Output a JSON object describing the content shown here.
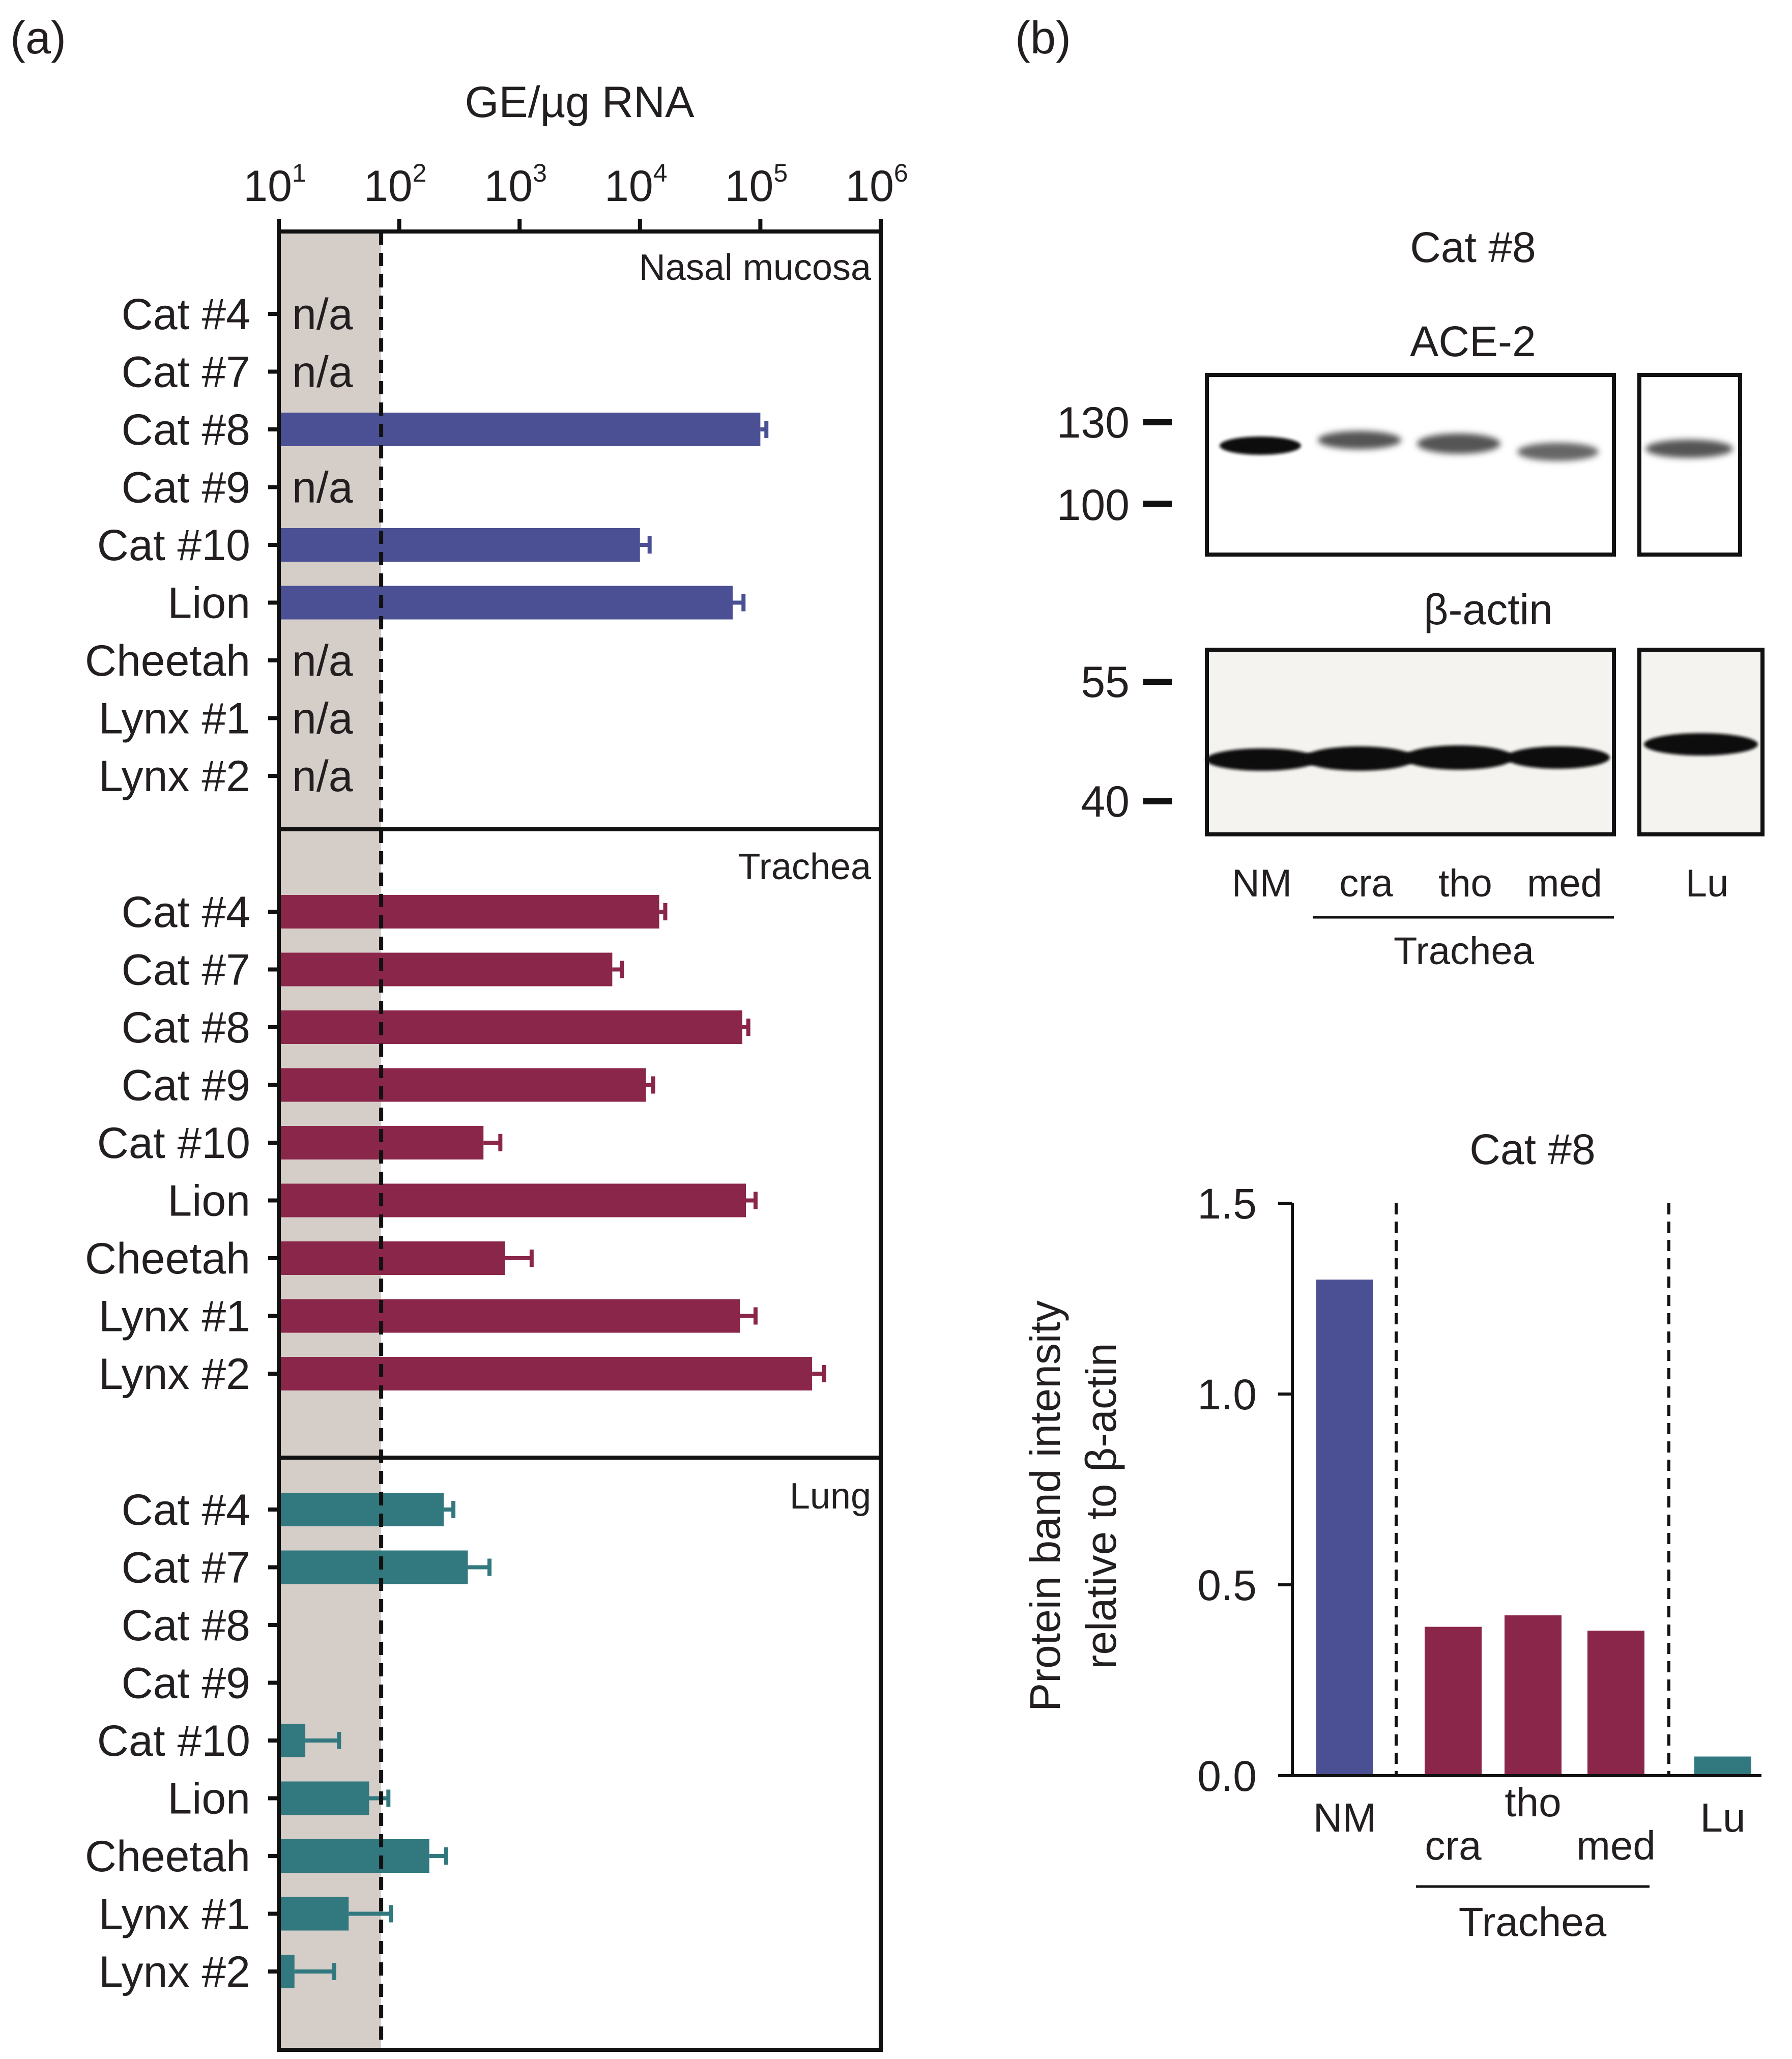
{
  "panel_labels": {
    "a": "(a)",
    "b": "(b)"
  },
  "colors": {
    "nasal": "#4b5094",
    "trachea": "#8a2649",
    "lung": "#32797f",
    "lod_shade": "#d5cdc8"
  },
  "chart_data": [
    {
      "type": "bar",
      "orientation": "horizontal",
      "scale": "log",
      "xlabel": "GE/µg RNA",
      "xticks": [
        {
          "base": "10",
          "exp": "1"
        },
        {
          "base": "10",
          "exp": "2"
        },
        {
          "base": "10",
          "exp": "3"
        },
        {
          "base": "10",
          "exp": "4"
        },
        {
          "base": "10",
          "exp": "5"
        },
        {
          "base": "10",
          "exp": "6"
        }
      ],
      "xlim_log10": [
        1,
        6
      ],
      "detection_limit_log10": 1.85,
      "panels": [
        {
          "name": "Nasal mucosa",
          "categories": [
            "Cat #4",
            "Cat #7",
            "Cat #8",
            "Cat #9",
            "Cat #10",
            "Lion",
            "Cheetah",
            "Lynx #1",
            "Lynx #2"
          ],
          "log10_values": [
            null,
            null,
            5.0,
            null,
            4.0,
            4.77,
            null,
            null,
            null
          ],
          "log10_error": [
            null,
            null,
            0.05,
            null,
            0.08,
            0.09,
            null,
            null,
            null
          ],
          "na_label": "n/a",
          "na": [
            true,
            true,
            false,
            true,
            false,
            false,
            true,
            true,
            true
          ]
        },
        {
          "name": "Trachea",
          "categories": [
            "Cat #4",
            "Cat #7",
            "Cat #8",
            "Cat #9",
            "Cat #10",
            "Lion",
            "Cheetah",
            "Lynx #1",
            "Lynx #2"
          ],
          "log10_values": [
            4.16,
            3.77,
            4.85,
            4.05,
            2.7,
            4.88,
            2.88,
            4.83,
            5.43
          ],
          "log10_error": [
            0.05,
            0.08,
            0.05,
            0.06,
            0.14,
            0.08,
            0.22,
            0.13,
            0.1
          ],
          "na": [
            false,
            false,
            false,
            false,
            false,
            false,
            false,
            false,
            false
          ]
        },
        {
          "name": "Lung",
          "categories": [
            "Cat #4",
            "Cat #7",
            "Cat #8",
            "Cat #9",
            "Cat #10",
            "Lion",
            "Cheetah",
            "Lynx #1",
            "Lynx #2"
          ],
          "log10_values": [
            2.37,
            2.57,
            null,
            null,
            1.22,
            1.75,
            2.25,
            1.58,
            1.13
          ],
          "log10_error": [
            0.08,
            0.18,
            null,
            null,
            0.28,
            0.16,
            0.14,
            0.35,
            0.33
          ],
          "na": [
            false,
            false,
            false,
            false,
            false,
            false,
            false,
            false,
            false
          ]
        }
      ]
    },
    {
      "type": "bar",
      "title": "Cat #8",
      "categories": [
        "NM",
        "cra",
        "tho",
        "med",
        "Lu"
      ],
      "values": [
        1.3,
        0.39,
        0.42,
        0.38,
        0.05
      ],
      "category_colors": [
        "nasal",
        "trachea",
        "trachea",
        "trachea",
        "lung"
      ],
      "group_label": "Trachea",
      "ylabel_line1": "Protein band intensity",
      "ylabel_line2": "relative to β-actin",
      "ylim": [
        0,
        1.5
      ],
      "yticks": [
        "0.0",
        "0.5",
        "1.0",
        "1.5"
      ],
      "ytick_values": [
        0,
        0.5,
        1.0,
        1.5
      ]
    }
  ],
  "blot": {
    "title": "Cat #8",
    "ace2_label": "ACE-2",
    "actin_label": "β-actin",
    "ace2_markers": [
      "130",
      "100"
    ],
    "actin_markers": [
      "55",
      "40"
    ],
    "lanes": [
      "NM",
      "cra",
      "tho",
      "med"
    ],
    "lung_lane": "Lu",
    "group_label": "Trachea"
  }
}
